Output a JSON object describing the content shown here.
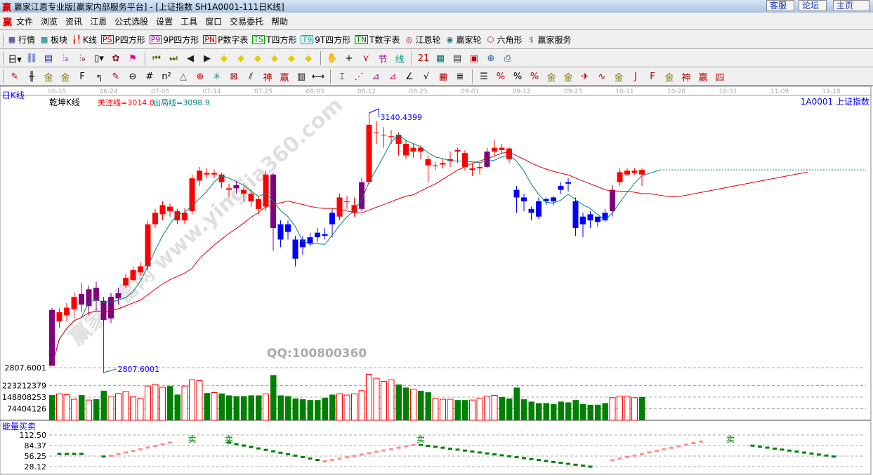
{
  "window": {
    "logo": "赢",
    "title": "赢家江恩专业版[赢家内部服务平台] - [上证指数  SH1A0001-111日K线]",
    "buttons": [
      "客服",
      "论坛",
      "主页"
    ]
  },
  "menu": {
    "logo": "赢",
    "items": [
      "文件",
      "浏览",
      "资讯",
      "江恩",
      "公式选股",
      "设置",
      "工具",
      "窗口",
      "交易委托",
      "帮助"
    ]
  },
  "toolbar1": [
    {
      "icon": "grid-table-icon",
      "glyph": "▦",
      "color": "#1a2a80",
      "label": "行情"
    },
    {
      "icon": "blocks-icon",
      "glyph": "▩",
      "color": "#008080",
      "label": "板块"
    },
    {
      "icon": "kline-icon",
      "glyph": "╽╿",
      "color": "#d00000",
      "label": "K线"
    },
    {
      "icon": "ps-icon",
      "glyph": "PS",
      "color": "#c00000",
      "box": true,
      "label": "P四方形"
    },
    {
      "icon": "p9-icon",
      "glyph": "P9",
      "color": "#c000c0",
      "box": true,
      "label": "9P四方形"
    },
    {
      "icon": "pn-icon",
      "glyph": "PN",
      "color": "#c00000",
      "box": true,
      "label": "P数字表"
    },
    {
      "icon": "ts-icon",
      "glyph": "TS",
      "color": "#00a000",
      "box": true,
      "label": "T四方形"
    },
    {
      "icon": "t9-icon",
      "glyph": "T9",
      "color": "#00b0c0",
      "box": true,
      "label": "9T四方形"
    },
    {
      "icon": "tn-icon",
      "glyph": "TN",
      "color": "#008000",
      "box": true,
      "label": "T数字表"
    },
    {
      "icon": "gann-wheel-icon",
      "glyph": "◎",
      "color": "#a02020",
      "label": "江恩轮"
    },
    {
      "icon": "big-wheel-icon",
      "glyph": "◉",
      "color": "#207080",
      "label": "赢家轮"
    },
    {
      "icon": "hexagon-icon",
      "glyph": "⬡",
      "color": "#c00000",
      "label": "六角形"
    },
    {
      "icon": "dollar-icon",
      "glyph": "$",
      "color": "#30a030",
      "label": "赢家服务"
    }
  ],
  "toolbar2": [
    {
      "icon": "period-day-dropdown",
      "glyph": "日▾",
      "color": "#000"
    },
    {
      "icon": "link-icon",
      "glyph": "⛓",
      "color": "#1030c0"
    },
    {
      "icon": "notepad-icon",
      "glyph": "▤",
      "color": "#1030c0"
    },
    {
      "icon": "kline3-icon",
      "glyph": "⫶₃",
      "color": "#900090"
    },
    {
      "icon": "kline9-icon",
      "glyph": "⫶₉",
      "color": "#900000"
    },
    {
      "icon": "candle-dropdown-icon",
      "glyph": "▯▾",
      "color": "#000"
    },
    {
      "icon": "pattern-icon",
      "glyph": "✿",
      "color": "#900000"
    },
    {
      "icon": "flag-icon",
      "glyph": "⚑",
      "color": "#e0008a"
    },
    {
      "icon": "first-icon",
      "glyph": "⏮",
      "color": "#606000"
    },
    {
      "icon": "last-icon",
      "glyph": "⏭",
      "color": "#606000"
    },
    {
      "icon": "left-icon",
      "glyph": "◀",
      "color": "#222"
    },
    {
      "icon": "right-icon",
      "glyph": "▶",
      "color": "#222"
    },
    {
      "icon": "diamond-left-icon",
      "glyph": "◆",
      "color": "#e0d000"
    },
    {
      "icon": "diamond-right-icon",
      "glyph": "◆",
      "color": "#e0d000"
    },
    {
      "icon": "diamond-up-icon",
      "glyph": "◆",
      "color": "#e0d000"
    },
    {
      "icon": "diamond-zoom-in-icon",
      "glyph": "◆",
      "color": "#e0d000"
    },
    {
      "icon": "diamond-zoom-out-icon",
      "glyph": "◆",
      "color": "#e0d000"
    },
    {
      "icon": "diamond-move-icon",
      "glyph": "◆",
      "color": "#e0d000"
    },
    {
      "icon": "hand-icon",
      "glyph": "✋",
      "color": "#333"
    },
    {
      "icon": "crosshair-icon",
      "glyph": "+",
      "color": "#000"
    },
    {
      "icon": "zigzag-icon",
      "glyph": "⋎",
      "color": "#c00000"
    },
    {
      "icon": "section-icon",
      "glyph": "节",
      "color": "#a000a0"
    },
    {
      "icon": "line-icon",
      "glyph": "线",
      "color": "#00a080"
    },
    {
      "icon": "calendar-icon",
      "glyph": "21",
      "color": "#c00000"
    },
    {
      "icon": "calculator-icon",
      "glyph": "▦",
      "color": "#007070"
    },
    {
      "icon": "document-icon",
      "glyph": "▤",
      "color": "#333"
    },
    {
      "icon": "save-icon",
      "glyph": "▣",
      "color": "#c00000"
    },
    {
      "icon": "network-icon",
      "glyph": "⊕",
      "color": "#2060a0"
    },
    {
      "icon": "printer-icon",
      "glyph": "⎙",
      "color": "#204080"
    }
  ],
  "toolbar3": [
    {
      "icon": "pen-icon",
      "glyph": "✎",
      "color": "#c00000"
    },
    {
      "icon": "parallel-lines-icon",
      "glyph": "╫",
      "color": "#000"
    },
    {
      "icon": "gold1-icon",
      "glyph": "金",
      "color": "#807000"
    },
    {
      "icon": "gold2-icon",
      "glyph": "金",
      "color": "#807000"
    },
    {
      "icon": "fib-icon",
      "glyph": "F",
      "color": "#000"
    },
    {
      "icon": "spiral-icon",
      "glyph": "ๆ",
      "color": "#000"
    },
    {
      "icon": "pen-eraser-icon",
      "glyph": "✎",
      "color": "#c00000"
    },
    {
      "icon": "circle-icon",
      "glyph": "⊖",
      "color": "#000"
    },
    {
      "icon": "hash-icon",
      "glyph": "#",
      "color": "#000"
    },
    {
      "icon": "n2-icon",
      "glyph": "n²",
      "color": "#000"
    },
    {
      "icon": "triangle-icon",
      "glyph": "△",
      "color": "#555"
    },
    {
      "icon": "target-icon",
      "glyph": "⊕",
      "color": "#c00000"
    },
    {
      "icon": "star-icon",
      "glyph": "✳",
      "color": "#208080"
    },
    {
      "icon": "box-x-icon",
      "glyph": "⊠",
      "color": "#c00000"
    },
    {
      "icon": "slash-icon",
      "glyph": "⫽",
      "color": "#000"
    },
    {
      "icon": "shen-icon",
      "glyph": "神",
      "color": "#c00000"
    },
    {
      "icon": "ying-icon",
      "glyph": "赢",
      "color": "#c00000"
    },
    {
      "icon": "ruler-icon",
      "glyph": "▥",
      "color": "#000"
    },
    {
      "icon": "span-icon",
      "glyph": "⟷",
      "color": "#000"
    },
    {
      "icon": "box-icon",
      "glyph": "⌶",
      "color": "#000"
    },
    {
      "icon": "fan-icon",
      "glyph": "⋰",
      "color": "#c00000"
    },
    {
      "icon": "fan-box-icon",
      "glyph": "⊿",
      "color": "#900090"
    },
    {
      "icon": "fan-box2-icon",
      "glyph": "⊿",
      "color": "#c00060"
    },
    {
      "icon": "angle-icon",
      "glyph": "∠",
      "color": "#000"
    },
    {
      "icon": "v-icon",
      "glyph": "√",
      "color": "#000"
    },
    {
      "icon": "grid-icon",
      "glyph": "▦",
      "color": "#c00000"
    },
    {
      "icon": "stripes-icon",
      "glyph": "≣",
      "color": "#000"
    },
    {
      "icon": "lines-icon",
      "glyph": "☰",
      "color": "#000"
    },
    {
      "icon": "percent-line-icon",
      "glyph": "%",
      "color": "#c00000"
    },
    {
      "icon": "percent-icon",
      "glyph": "%",
      "color": "#000"
    },
    {
      "icon": "percent-levels-icon",
      "glyph": "%",
      "color": "#c00000"
    },
    {
      "icon": "gold-circle-icon",
      "glyph": "金",
      "color": "#807000"
    },
    {
      "icon": "gold-levels-icon",
      "glyph": "金",
      "color": "#807000"
    },
    {
      "icon": "rocket-icon",
      "glyph": "✈",
      "color": "#c00000"
    },
    {
      "icon": "wave-icon",
      "glyph": "∿",
      "color": "#c00000"
    },
    {
      "icon": "gold-box-icon",
      "glyph": "金",
      "color": "#807000"
    },
    {
      "icon": "j-angle-icon",
      "glyph": "J",
      "color": "#c00000"
    },
    {
      "icon": "f-angle-icon",
      "glyph": "F",
      "color": "#c00000"
    },
    {
      "icon": "gold-angle-icon",
      "glyph": "金",
      "color": "#807000"
    },
    {
      "icon": "shen-angle-icon",
      "glyph": "神",
      "color": "#c00000"
    },
    {
      "icon": "ying-angle-icon",
      "glyph": "赢",
      "color": "#c00000"
    },
    {
      "icon": "four-angle-icon",
      "glyph": "四",
      "color": "#c00000"
    }
  ],
  "chart": {
    "period_label": "日K线",
    "indicator_name": "乾坤K线",
    "focus_line": "关注线=3014.0",
    "exit_line": "出局线=3098.9",
    "symbol": "1A0001  上证指数",
    "dates": [
      "06-15",
      "06-24",
      "07-05",
      "07-14",
      "07-25",
      "08-03",
      "08-12",
      "08-23",
      "09-01",
      "09-12",
      "09-23",
      "10-11",
      "10-20",
      "10-31",
      "11-09",
      "11-18"
    ],
    "price_low_label": "2807.6001",
    "max_label": "3140.4399",
    "min_label": "2807.6001",
    "colors": {
      "up": "#ff0000",
      "down": "#0000ff",
      "signal": "#800080",
      "ma_short": "#008080",
      "ma_long": "#e00000",
      "vol_up": "#ff0000",
      "vol_down": "#008000"
    },
    "watermark": "赢家财富网 www.yingjia360.com",
    "qq": "QQ:100800360"
  },
  "chart_data": {
    "type": "candlestick",
    "price_range": [
      2807.6001,
      3140.4399
    ],
    "candles": [
      [
        2883,
        2886,
        2810,
        2810,
        "p"
      ],
      [
        2868,
        2885,
        2860,
        2880,
        "r"
      ],
      [
        2876,
        2892,
        2868,
        2886,
        "r"
      ],
      [
        2884,
        2906,
        2872,
        2900,
        "r"
      ],
      [
        2904,
        2918,
        2880,
        2890,
        "p"
      ],
      [
        2888,
        2915,
        2876,
        2910,
        "p"
      ],
      [
        2912,
        2920,
        2882,
        2895,
        "p"
      ],
      [
        2895,
        2900,
        2807.6001,
        2870,
        "p"
      ],
      [
        2872,
        2905,
        2866,
        2900,
        "p"
      ],
      [
        2898,
        2912,
        2890,
        2905,
        "p"
      ],
      [
        2915,
        2930,
        2912,
        2925,
        "r"
      ],
      [
        2922,
        2940,
        2920,
        2935,
        "r"
      ],
      [
        2932,
        2945,
        2928,
        2940,
        "r"
      ],
      [
        2940,
        3000,
        2935,
        2995,
        "r"
      ],
      [
        2995,
        3015,
        2990,
        3010,
        "r"
      ],
      [
        3008,
        3025,
        3000,
        3020,
        "r"
      ],
      [
        3018,
        3022,
        3005,
        3012,
        "r"
      ],
      [
        3012,
        3015,
        2995,
        3000,
        "r"
      ],
      [
        3000,
        3016,
        2995,
        3010,
        "r"
      ],
      [
        3012,
        3060,
        3008,
        3055,
        "r"
      ],
      [
        3052,
        3070,
        3045,
        3065,
        "r"
      ],
      [
        3062,
        3068,
        3055,
        3060,
        "r"
      ],
      [
        3060,
        3066,
        3055,
        3062,
        "r"
      ],
      [
        3060,
        3062,
        3042,
        3050,
        "r"
      ],
      [
        3042,
        3048,
        3030,
        3040,
        "r"
      ],
      [
        3046,
        3052,
        3035,
        3042,
        "p"
      ],
      [
        3040,
        3044,
        3025,
        3035,
        "r"
      ],
      [
        3035,
        3040,
        3018,
        3025,
        "r"
      ],
      [
        3028,
        3032,
        3008,
        3015,
        "r"
      ],
      [
        3018,
        3065,
        3012,
        3060,
        "r"
      ],
      [
        3060,
        3062,
        2960,
        2990,
        "p"
      ],
      [
        2995,
        3000,
        2965,
        2975,
        "b"
      ],
      [
        2995,
        3000,
        2975,
        2985,
        "b"
      ],
      [
        2975,
        2980,
        2940,
        2950,
        "b"
      ],
      [
        2975,
        2980,
        2955,
        2965,
        "b"
      ],
      [
        2978,
        2984,
        2966,
        2970,
        "b"
      ],
      [
        2984,
        2990,
        2972,
        2978,
        "b"
      ],
      [
        2982,
        2990,
        2975,
        2980,
        "b"
      ],
      [
        2995,
        3015,
        2978,
        3010,
        "b"
      ],
      [
        3005,
        3035,
        3000,
        3030,
        "r"
      ],
      [
        3025,
        3032,
        3015,
        3025,
        "r"
      ],
      [
        3010,
        3030,
        3005,
        3020,
        "r"
      ],
      [
        3015,
        3055,
        3012,
        3050,
        "p"
      ],
      [
        3050,
        3140.4399,
        3048,
        3125,
        "r"
      ],
      [
        3115,
        3130,
        3100,
        3115,
        "r"
      ],
      [
        3112,
        3122,
        3095,
        3112,
        "r"
      ],
      [
        3110,
        3118,
        3100,
        3110,
        "r"
      ],
      [
        3112,
        3115,
        3085,
        3100,
        "r"
      ],
      [
        3100,
        3105,
        3080,
        3085,
        "r"
      ],
      [
        3090,
        3100,
        3082,
        3095,
        "r"
      ],
      [
        3095,
        3098,
        3080,
        3090,
        "r"
      ],
      [
        3080,
        3085,
        3050,
        3072,
        "r"
      ],
      [
        3072,
        3076,
        3066,
        3072,
        "r"
      ],
      [
        3073,
        3080,
        3068,
        3075,
        "r"
      ],
      [
        3078,
        3090,
        3070,
        3080,
        "r"
      ],
      [
        3092,
        3095,
        3075,
        3090,
        "r"
      ],
      [
        3088,
        3092,
        3065,
        3070,
        "r"
      ],
      [
        3066,
        3075,
        3058,
        3068,
        "r"
      ],
      [
        3068,
        3075,
        3060,
        3070,
        "r"
      ],
      [
        3070,
        3095,
        3068,
        3090,
        "p"
      ],
      [
        3090,
        3105,
        3085,
        3095,
        "r"
      ],
      [
        3095,
        3100,
        3088,
        3092,
        "r"
      ],
      [
        3094,
        3096,
        3075,
        3080,
        "r"
      ],
      [
        3040,
        3045,
        3010,
        3030,
        "b"
      ],
      [
        3030,
        3035,
        3012,
        3025,
        "b"
      ],
      [
        3015,
        3018,
        3000,
        3010,
        "b"
      ],
      [
        3005,
        3030,
        3002,
        3025,
        "b"
      ],
      [
        3025,
        3030,
        3020,
        3028,
        "b"
      ],
      [
        3030,
        3032,
        3020,
        3025,
        "b"
      ],
      [
        3040,
        3050,
        3035,
        3045,
        "b"
      ],
      [
        3050,
        3055,
        3038,
        3048,
        "b"
      ],
      [
        3025,
        3030,
        2980,
        2990,
        "b"
      ],
      [
        3005,
        3010,
        2978,
        2995,
        "b"
      ],
      [
        3008,
        3012,
        2990,
        3000,
        "b"
      ],
      [
        2998,
        3005,
        2992,
        3005,
        "b"
      ],
      [
        3000,
        3015,
        2998,
        3010,
        "b"
      ],
      [
        3012,
        3046,
        3005,
        3040,
        "p"
      ],
      [
        3050,
        3068,
        3045,
        3063,
        "r"
      ],
      [
        3060,
        3068,
        3058,
        3065,
        "r"
      ],
      [
        3062,
        3068,
        3060,
        3065,
        "r"
      ],
      [
        3066,
        3068,
        3045,
        3060,
        "r"
      ]
    ],
    "volume_axis_labels": [
      "223212379",
      "148808253",
      "74404126"
    ],
    "volume": [
      162000000.0,
      170000000.0,
      165000000.0,
      135000000.0,
      162000000.0,
      130000000.0,
      136000000.0,
      190000000.0,
      155000000.0,
      172000000.0,
      185000000.0,
      150000000.0,
      140000000.0,
      220000000.0,
      230000000.0,
      212000000.0,
      220000000.0,
      165000000.0,
      220000000.0,
      260000000.0,
      255000000.0,
      175000000.0,
      178000000.0,
      172000000.0,
      160000000.0,
      155000000.0,
      155000000.0,
      160000000.0,
      160000000.0,
      170000000.0,
      290000000.0,
      160000000.0,
      155000000.0,
      140000000.0,
      135000000.0,
      130000000.0,
      130000000.0,
      145000000.0,
      165000000.0,
      170000000.0,
      162000000.0,
      170000000.0,
      190000000.0,
      295000000.0,
      270000000.0,
      250000000.0,
      260000000.0,
      230000000.0,
      210000000.0,
      200000000.0,
      190000000.0,
      180000000.0,
      140000000.0,
      135000000.0,
      135000000.0,
      130000000.0,
      130000000.0,
      130000000.0,
      140000000.0,
      155000000.0,
      160000000.0,
      150000000.0,
      140000000.0,
      210000000.0,
      135000000.0,
      120000000.0,
      110000000.0,
      110000000.0,
      105000000.0,
      120000000.0,
      115000000.0,
      130000000.0,
      105000000.0,
      100000000.0,
      100000000.0,
      110000000.0,
      145000000.0,
      155000000.0,
      155000000.0,
      145000000.0,
      150000000.0
    ],
    "indicator": {
      "name": "能量买卖",
      "axis_labels": [
        "112.50",
        "84.37",
        "56.25",
        "28.12"
      ],
      "range": [
        28.12,
        112.5
      ],
      "segments": [
        {
          "from": 1,
          "to": 4,
          "start": 62,
          "end": 62,
          "dir": "sell"
        },
        {
          "from": 7,
          "to": 7,
          "start": 55,
          "end": 55,
          "dir": "sell"
        },
        {
          "from": 8,
          "to": 16,
          "start": 57,
          "end": 92,
          "dir": "buy"
        },
        {
          "from": 24,
          "to": 37,
          "start": 92,
          "end": 42,
          "dir": "sell"
        },
        {
          "from": 37,
          "to": 49,
          "start": 42,
          "end": 86,
          "dir": "buy"
        },
        {
          "from": 50,
          "to": 73,
          "start": 86,
          "end": 28,
          "dir": "sell"
        },
        {
          "from": 76,
          "to": 88,
          "start": 45,
          "end": 95,
          "dir": "buy"
        },
        {
          "from": 95,
          "to": 106,
          "start": 84,
          "end": 55,
          "dir": "sell"
        }
      ],
      "sell_signals": [
        {
          "index": 19,
          "label": "卖"
        },
        {
          "index": 24,
          "label": "卖"
        },
        {
          "index": 50,
          "label": "卖"
        },
        {
          "index": 92,
          "label": "卖"
        }
      ]
    }
  }
}
